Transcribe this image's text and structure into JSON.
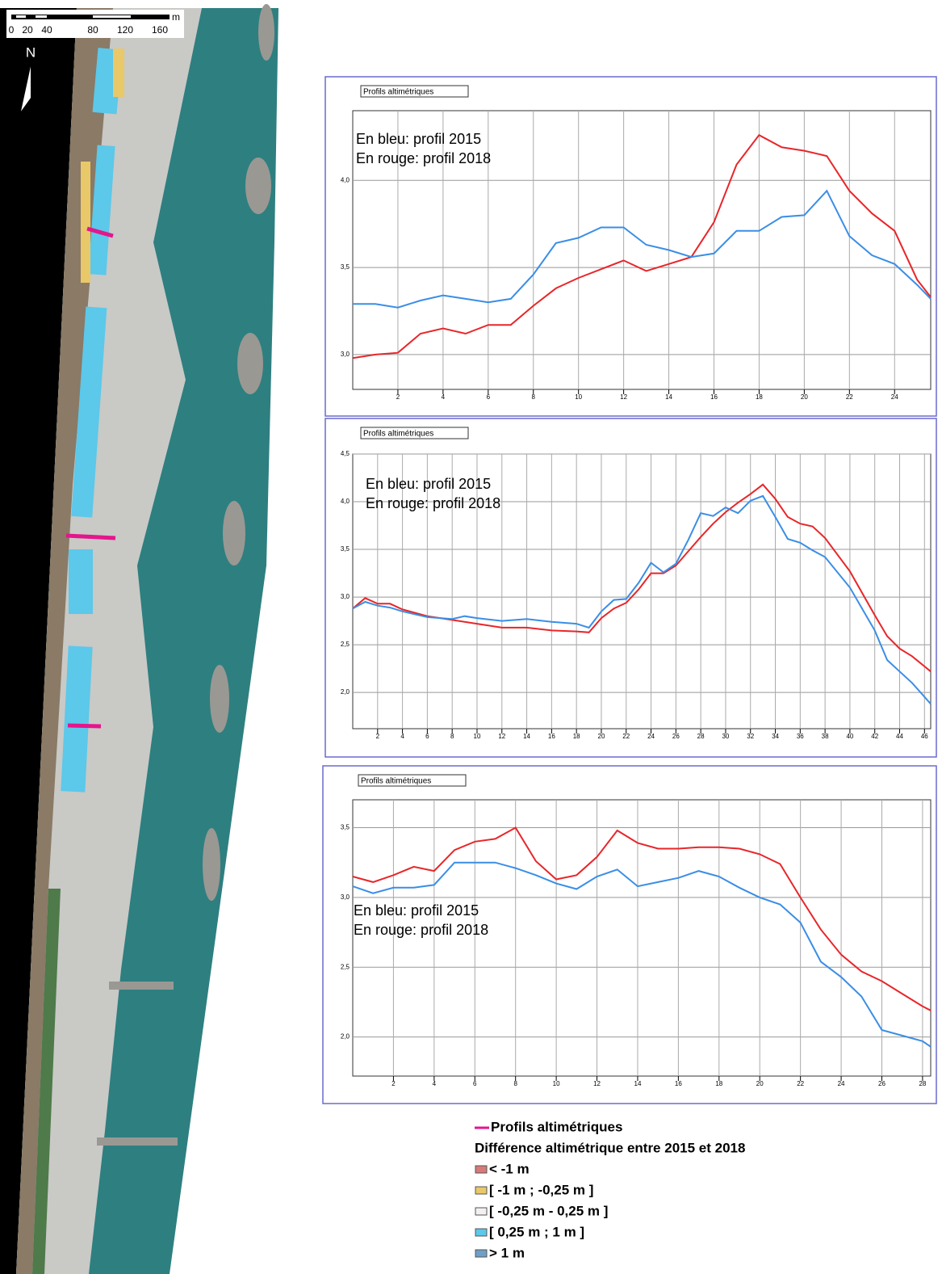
{
  "map": {
    "scale_labels": [
      "0",
      "20",
      "40",
      "80",
      "120",
      "160"
    ],
    "scale_unit": "m",
    "north": "N"
  },
  "legend": {
    "line_item": "Profils altimétriques",
    "line_color": "#e4168c",
    "title": "Différence altimétrique entre 2015 et 2018",
    "items": [
      {
        "label": "< -1 m",
        "color": "#d77a7a"
      },
      {
        "label": "[ -1 m ; -0,25 m ]",
        "color": "#e9c86a"
      },
      {
        "label": "[ -0,25 m - 0,25 m ]",
        "color": "#f2f0f0"
      },
      {
        "label": "[ 0,25 m ; 1 m ]",
        "color": "#5cc8ea"
      },
      {
        "label": "> 1 m",
        "color": "#6e9fc6"
      }
    ]
  },
  "chart_data": [
    {
      "type": "line",
      "title": "Profils altimétriques",
      "annotations": [
        "En bleu: profil 2015",
        "En rouge: profil 2018"
      ],
      "grid": true,
      "x": [
        0,
        1,
        2,
        3,
        4,
        5,
        6,
        7,
        8,
        9,
        10,
        11,
        12,
        13,
        14,
        15,
        16,
        17,
        18,
        19,
        20,
        21,
        22,
        23,
        24,
        25,
        25.6
      ],
      "series": [
        {
          "color": "#e8262a",
          "values": [
            2.98,
            3.0,
            3.01,
            3.12,
            3.15,
            3.12,
            3.17,
            3.17,
            3.28,
            3.38,
            3.44,
            3.49,
            3.54,
            3.48,
            3.52,
            3.56,
            3.76,
            4.09,
            4.26,
            4.19,
            4.17,
            4.14,
            3.94,
            3.81,
            3.71,
            3.43,
            3.33
          ]
        },
        {
          "color": "#3a8ee6",
          "values": [
            3.29,
            3.29,
            3.27,
            3.31,
            3.34,
            3.32,
            3.3,
            3.32,
            3.46,
            3.64,
            3.67,
            3.73,
            3.73,
            3.63,
            3.6,
            3.56,
            3.58,
            3.71,
            3.71,
            3.79,
            3.8,
            3.94,
            3.68,
            3.57,
            3.52,
            3.4,
            3.32
          ]
        }
      ],
      "xlim": [
        0,
        25.6
      ],
      "xticks": [
        2,
        4,
        6,
        8,
        10,
        12,
        14,
        16,
        18,
        20,
        22,
        24
      ],
      "ylim": [
        2.8,
        4.4
      ],
      "yticks": [
        {
          "value": 3,
          "label": "3,0"
        },
        {
          "value": 3.5,
          "label": "3,5"
        },
        {
          "value": 4,
          "label": "4,0"
        }
      ]
    },
    {
      "type": "line",
      "title": "Profils altimétriques",
      "annotations": [
        "En bleu: profil 2015",
        "En rouge: profil 2018"
      ],
      "grid": true,
      "x": [
        0,
        1,
        2,
        3,
        4,
        6,
        8,
        9,
        10,
        12,
        14,
        16,
        18,
        19,
        20,
        21,
        22,
        23,
        24,
        25,
        26,
        27,
        28,
        29,
        30,
        31,
        32,
        33,
        34,
        35,
        36,
        37,
        38,
        40,
        42,
        43,
        44,
        45,
        46.5
      ],
      "series": [
        {
          "color": "#e8262a",
          "values": [
            2.88,
            2.99,
            2.93,
            2.93,
            2.87,
            2.8,
            2.76,
            2.74,
            2.72,
            2.68,
            2.68,
            2.65,
            2.64,
            2.63,
            2.78,
            2.88,
            2.94,
            3.08,
            3.25,
            3.25,
            3.33,
            3.48,
            3.63,
            3.77,
            3.89,
            3.99,
            4.08,
            4.18,
            4.03,
            3.84,
            3.77,
            3.74,
            3.62,
            3.27,
            2.81,
            2.59,
            2.46,
            2.38,
            2.22
          ]
        },
        {
          "color": "#3a8ee6",
          "values": [
            2.88,
            2.95,
            2.91,
            2.89,
            2.85,
            2.79,
            2.77,
            2.8,
            2.78,
            2.75,
            2.77,
            2.74,
            2.72,
            2.68,
            2.85,
            2.97,
            2.98,
            3.15,
            3.36,
            3.26,
            3.35,
            3.6,
            3.88,
            3.85,
            3.94,
            3.88,
            4.01,
            4.06,
            3.84,
            3.61,
            3.57,
            3.49,
            3.42,
            3.1,
            2.65,
            2.34,
            2.22,
            2.1,
            1.88
          ]
        }
      ],
      "xlim": [
        0,
        46.5
      ],
      "xticks": [
        2,
        4,
        6,
        8,
        10,
        12,
        14,
        16,
        18,
        20,
        22,
        24,
        26,
        28,
        30,
        32,
        34,
        36,
        38,
        40,
        42,
        44,
        46
      ],
      "ylim": [
        1.62,
        4.5
      ],
      "yticks": [
        {
          "value": 2,
          "label": "2,0"
        },
        {
          "value": 2.5,
          "label": "2,5"
        },
        {
          "value": 3,
          "label": "3,0"
        },
        {
          "value": 3.5,
          "label": "3,5"
        },
        {
          "value": 4,
          "label": "4,0"
        },
        {
          "value": 4.5,
          "label": "4,5"
        }
      ]
    },
    {
      "type": "line",
      "title": "Profils altimétriques",
      "annotations": [
        "En bleu: profil 2015",
        "En rouge: profil 2018"
      ],
      "grid": true,
      "x": [
        0,
        1,
        2,
        3,
        4,
        5,
        6,
        7,
        8,
        9,
        10,
        11,
        12,
        13,
        14,
        15,
        16,
        17,
        18,
        19,
        20,
        21,
        22,
        23,
        24,
        25,
        26,
        27,
        28,
        28.4
      ],
      "series": [
        {
          "color": "#e8262a",
          "values": [
            3.15,
            3.11,
            3.16,
            3.22,
            3.19,
            3.34,
            3.4,
            3.42,
            3.5,
            3.26,
            3.13,
            3.16,
            3.29,
            3.48,
            3.39,
            3.35,
            3.35,
            3.36,
            3.36,
            3.35,
            3.31,
            3.24,
            3.0,
            2.77,
            2.59,
            2.47,
            2.4,
            2.31,
            2.22,
            2.19
          ]
        },
        {
          "color": "#3a8ee6",
          "values": [
            3.08,
            3.03,
            3.07,
            3.07,
            3.09,
            3.25,
            3.25,
            3.25,
            3.21,
            3.16,
            3.1,
            3.06,
            3.15,
            3.2,
            3.08,
            3.11,
            3.14,
            3.19,
            3.15,
            3.07,
            3.0,
            2.95,
            2.82,
            2.54,
            2.43,
            2.29,
            2.05,
            2.01,
            1.97,
            1.93
          ]
        }
      ],
      "xlim": [
        0,
        28.4
      ],
      "xticks": [
        2,
        4,
        6,
        8,
        10,
        12,
        14,
        16,
        18,
        20,
        22,
        24,
        26,
        28
      ],
      "ylim": [
        1.72,
        3.7
      ],
      "yticks": [
        {
          "value": 2,
          "label": "2,0"
        },
        {
          "value": 2.5,
          "label": "2,5"
        },
        {
          "value": 3,
          "label": "3,0"
        },
        {
          "value": 3.5,
          "label": "3,5"
        }
      ]
    }
  ]
}
